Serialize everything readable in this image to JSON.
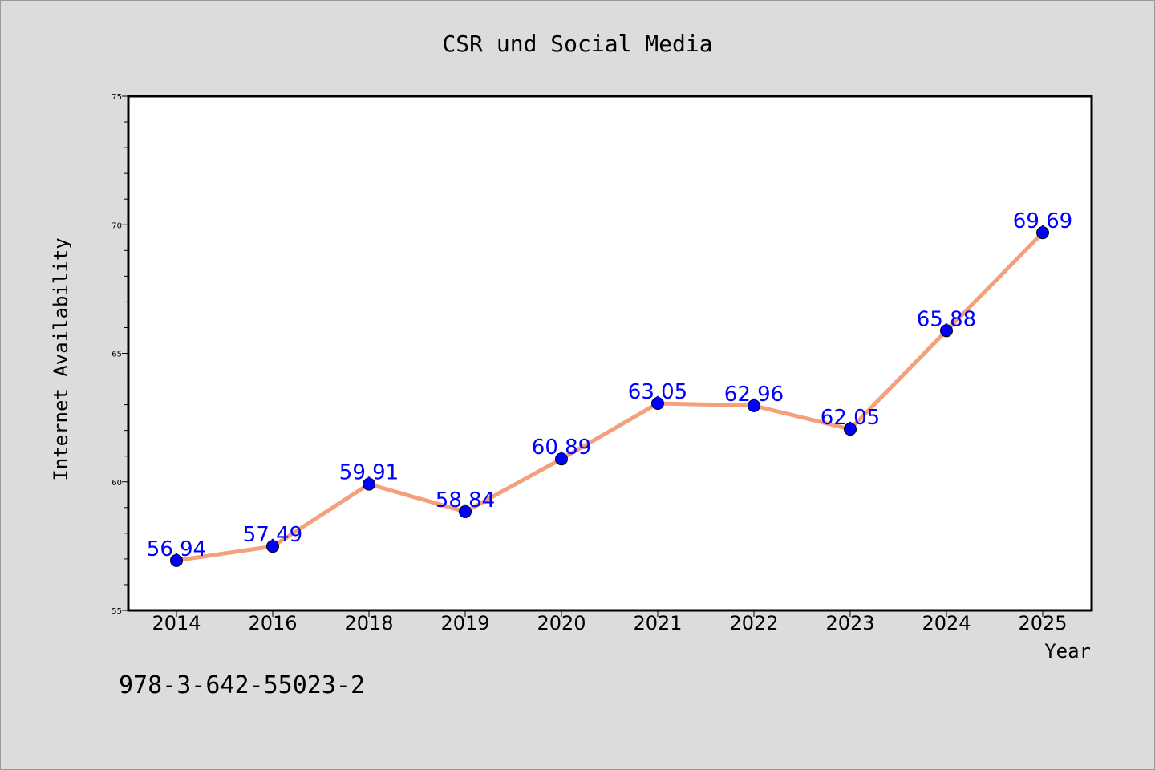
{
  "chart_data": {
    "type": "line",
    "title": "CSR und Social Media",
    "xlabel": "Year",
    "ylabel": "Internet Availability",
    "categories": [
      "2014",
      "2016",
      "2018",
      "2019",
      "2020",
      "2021",
      "2022",
      "2023",
      "2024",
      "2025"
    ],
    "series": [
      {
        "values": [
          56.94,
          57.49,
          59.91,
          58.84,
          60.89,
          63.05,
          62.96,
          62.05,
          65.88,
          69.69
        ],
        "data_labels": [
          "56.94",
          "57.49",
          "59.91",
          "58.84",
          "60.89",
          "63.05",
          "62.96",
          "62.05",
          "65.88",
          "69.69"
        ],
        "line_color": "#f4a07c",
        "marker_color": "#0000ff"
      }
    ],
    "ylim": [
      55,
      75
    ],
    "yticks": [
      "55",
      "60",
      "65",
      "70",
      "75"
    ],
    "grid": false,
    "legend": "none"
  },
  "footnote": "978-3-642-55023-2",
  "colors": {
    "background": "#dcdcdc",
    "plot_background": "#ffffff",
    "line": "#f4a07c",
    "marker": "#0000ff",
    "data_label": "#0000ff"
  }
}
